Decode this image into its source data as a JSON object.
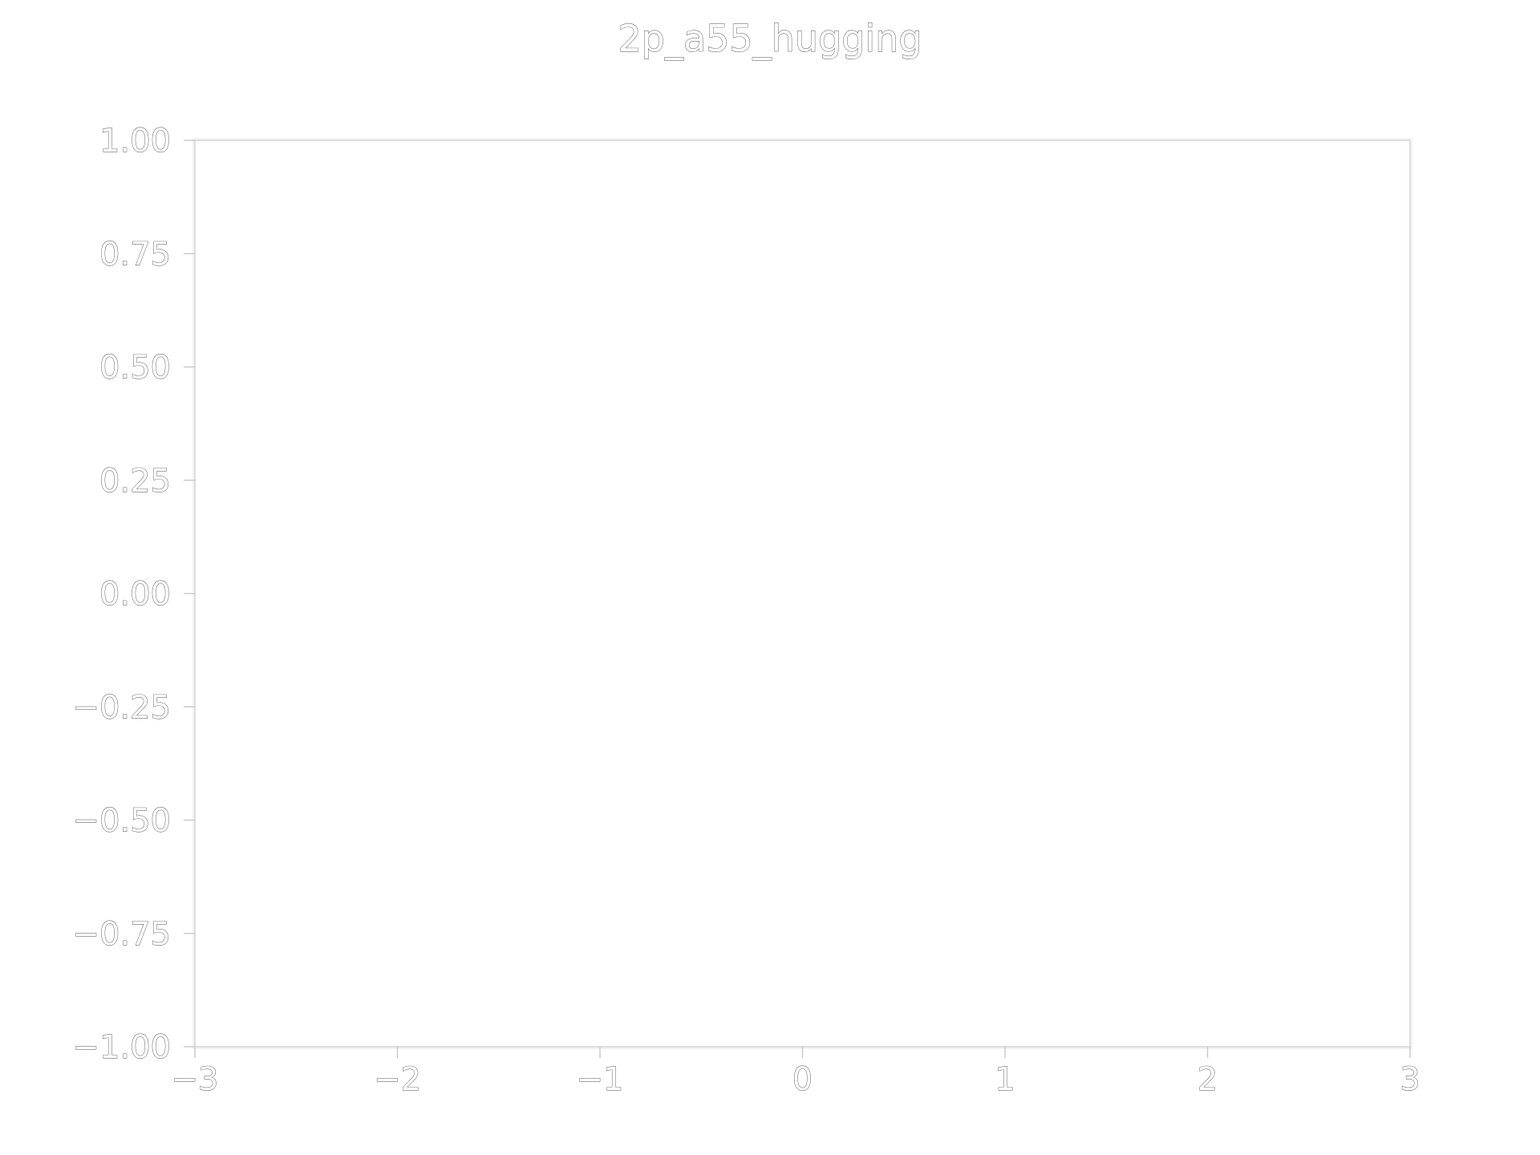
{
  "chart_data": {
    "type": "line",
    "title": "2p_a55_hugging",
    "xlabel": "",
    "ylabel": "",
    "xlim": [
      -3,
      3
    ],
    "ylim": [
      -1,
      1
    ],
    "x_ticks": [
      -3,
      -2,
      -1,
      0,
      1,
      2,
      3
    ],
    "x_tick_labels": [
      "−3",
      "−2",
      "−1",
      "0",
      "1",
      "2",
      "3"
    ],
    "y_ticks": [
      1.0,
      0.75,
      0.5,
      0.25,
      0.0,
      -0.25,
      -0.5,
      -0.75,
      -1.0
    ],
    "y_tick_labels": [
      "1.00",
      "0.75",
      "0.50",
      "0.25",
      "0.00",
      "−0.25",
      "−0.50",
      "−0.75",
      "−1.00"
    ],
    "series": [],
    "grid": false,
    "legend": "none",
    "colors": {
      "text_stroke": "#4a4a4a",
      "text_fill": "#ffffff",
      "axes": "#cfcfcf",
      "background": "#ffffff"
    }
  }
}
